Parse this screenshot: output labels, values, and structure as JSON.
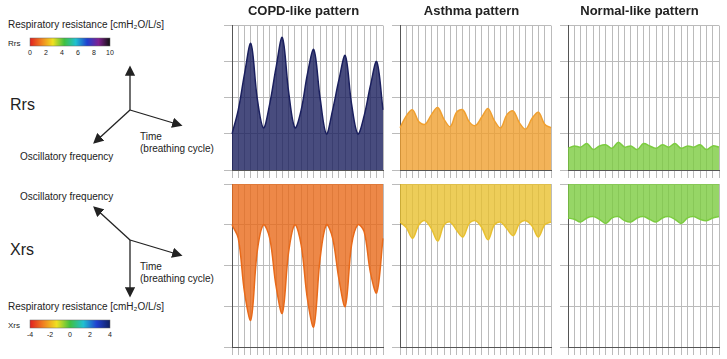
{
  "legends": [
    {
      "row": "Rrs",
      "value_axis": "Respiratory resistance [cmH₂O/L/s]",
      "time_axis": "Time (breathing cycle)",
      "frequency_axis": "Oscillatory frequency",
      "colorbar": {
        "label": "Rrs",
        "range": [
          0,
          10
        ],
        "ticks": [
          0,
          2,
          4,
          6,
          8,
          10
        ]
      }
    },
    {
      "row": "Xrs",
      "value_axis": "Respiratory resistance [cmH₂O/L/s]",
      "time_axis": "Time (breathing cycle)",
      "frequency_axis": "Oscillatory frequency",
      "colorbar": {
        "label": "Xrs",
        "range": [
          -4,
          4
        ],
        "ticks": [
          -4,
          -2,
          0,
          2,
          4
        ]
      }
    }
  ],
  "chart_data": [
    {
      "type": "line",
      "title": "COPD-like pattern",
      "categories": [
        null,
        null,
        null,
        null,
        null,
        null,
        null,
        null,
        null,
        null,
        null,
        null,
        null,
        null,
        null,
        null,
        null,
        null,
        null,
        null,
        null,
        null,
        null,
        null,
        null
      ],
      "values": [
        3,
        5,
        8,
        10.5,
        6,
        3.5,
        5.5,
        8.5,
        11,
        6.5,
        3.5,
        5,
        8,
        10,
        6,
        3,
        5,
        7.5,
        9.5,
        5.5,
        3,
        4.5,
        7,
        9,
        5
      ],
      "color": "#1a1f5e",
      "ylim": [
        0,
        12
      ],
      "yticks": [
        0,
        3,
        6,
        9,
        12
      ],
      "grid": true,
      "tick_labels": false
    },
    {
      "type": "line",
      "title": "Asthma pattern",
      "categories": [
        null,
        null,
        null,
        null,
        null,
        null,
        null,
        null,
        null,
        null,
        null,
        null,
        null,
        null,
        null,
        null,
        null,
        null,
        null,
        null,
        null,
        null,
        null,
        null,
        null
      ],
      "values": [
        3.5,
        4.5,
        5,
        4,
        3.8,
        4.6,
        5.2,
        4.2,
        3.6,
        4.8,
        5,
        4,
        3.7,
        4.4,
        5.1,
        4.1,
        3.5,
        4.6,
        4.9,
        3.9,
        3.4,
        4.3,
        4.8,
        3.8,
        3.5
      ],
      "color": "#f0a030",
      "ylim": [
        0,
        12
      ],
      "yticks": [
        0,
        3,
        6,
        9,
        12
      ],
      "grid": true,
      "tick_labels": false
    },
    {
      "type": "line",
      "title": "Normal-like pattern",
      "categories": [
        null,
        null,
        null,
        null,
        null,
        null,
        null,
        null,
        null,
        null,
        null,
        null,
        null,
        null,
        null,
        null,
        null,
        null,
        null,
        null,
        null,
        null,
        null,
        null,
        null
      ],
      "values": [
        1.8,
        2,
        1.9,
        2.2,
        1.7,
        2,
        2.1,
        1.8,
        2.3,
        1.9,
        2,
        1.7,
        2.2,
        2,
        1.8,
        2.1,
        1.9,
        2.2,
        1.8,
        2,
        1.9,
        2.1,
        1.7,
        2,
        1.9
      ],
      "color": "#7ccc40",
      "ylim": [
        0,
        12
      ],
      "yticks": [
        0,
        3,
        6,
        9,
        12
      ],
      "grid": true,
      "tick_labels": false
    },
    {
      "type": "line",
      "categories": [
        null,
        null,
        null,
        null,
        null,
        null,
        null,
        null,
        null,
        null,
        null,
        null,
        null,
        null,
        null,
        null,
        null,
        null,
        null,
        null,
        null,
        null,
        null,
        null,
        null
      ],
      "values": [
        -1,
        -2,
        -6,
        -8,
        -3,
        -1,
        -2,
        -5.5,
        -7.5,
        -3,
        -1,
        -2.5,
        -6.5,
        -8.5,
        -3.5,
        -1,
        -2,
        -5,
        -7,
        -2.5,
        -1,
        -1.5,
        -4.5,
        -6,
        -2
      ],
      "color": "#e86a1a",
      "ylim": [
        -10,
        2
      ],
      "yticks": [
        -10,
        -7,
        -4,
        -1,
        2
      ],
      "grid": true,
      "tick_labels": false
    },
    {
      "type": "line",
      "categories": [
        null,
        null,
        null,
        null,
        null,
        null,
        null,
        null,
        null,
        null,
        null,
        null,
        null,
        null,
        null,
        null,
        null,
        null,
        null,
        null,
        null,
        null,
        null,
        null,
        null
      ],
      "values": [
        -0.8,
        -1.2,
        -2,
        -1,
        -0.7,
        -1.3,
        -2.2,
        -1,
        -0.8,
        -1.4,
        -1.9,
        -0.9,
        -0.7,
        -1.2,
        -2.1,
        -1,
        -0.8,
        -1.3,
        -1.8,
        -0.9,
        -0.7,
        -1.1,
        -1.9,
        -1,
        -0.8
      ],
      "color": "#e8c030",
      "ylim": [
        -10,
        2
      ],
      "yticks": [
        -10,
        -7,
        -4,
        -1,
        2
      ],
      "grid": true,
      "tick_labels": false
    },
    {
      "type": "line",
      "categories": [
        null,
        null,
        null,
        null,
        null,
        null,
        null,
        null,
        null,
        null,
        null,
        null,
        null,
        null,
        null,
        null,
        null,
        null,
        null,
        null,
        null,
        null,
        null,
        null,
        null
      ],
      "values": [
        -0.5,
        -0.6,
        -0.8,
        -0.5,
        -0.4,
        -0.6,
        -0.9,
        -0.5,
        -0.4,
        -0.7,
        -0.8,
        -0.5,
        -0.4,
        -0.6,
        -0.8,
        -0.5,
        -0.4,
        -0.6,
        -0.9,
        -0.5,
        -0.4,
        -0.6,
        -0.7,
        -0.5,
        -0.4
      ],
      "color": "#7ccc40",
      "ylim": [
        -10,
        2
      ],
      "yticks": [
        -10,
        -7,
        -4,
        -1,
        2
      ],
      "grid": true,
      "tick_labels": false
    }
  ]
}
